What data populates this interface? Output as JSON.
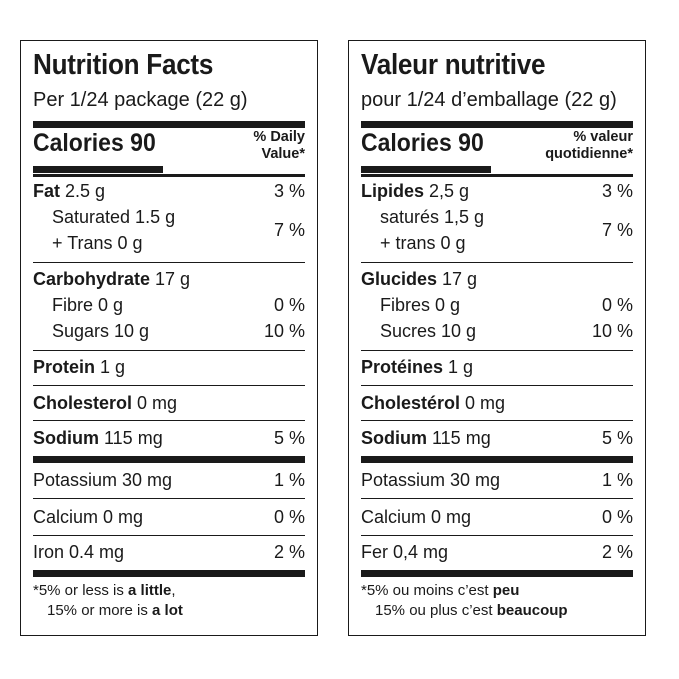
{
  "english": {
    "title": "Nutrition Facts",
    "serving": "Per 1/24 package (22 g)",
    "calories_label": "Calories 90",
    "dv_header_line1": "% Daily",
    "dv_header_line2": "Value*",
    "fat": {
      "label": "Fat",
      "amount": "2.5 g",
      "pct": "3 %"
    },
    "saturated": {
      "text": "Saturated 1.5 g"
    },
    "trans": {
      "text": "+ Trans 0 g"
    },
    "sat_trans_pct": "7 %",
    "carbohydrate": {
      "label": "Carbohydrate",
      "amount": "17 g"
    },
    "fibre": {
      "text": "Fibre 0 g",
      "pct": "0 %"
    },
    "sugars": {
      "text": "Sugars 10 g",
      "pct": "10 %"
    },
    "protein": {
      "label": "Protein",
      "amount": "1 g"
    },
    "cholesterol": {
      "label": "Cholesterol",
      "amount": "0 mg"
    },
    "sodium": {
      "label": "Sodium",
      "amount": "115 mg",
      "pct": "5 %"
    },
    "potassium": {
      "text": "Potassium 30 mg",
      "pct": "1 %"
    },
    "calcium": {
      "text": "Calcium 0 mg",
      "pct": "0 %"
    },
    "iron": {
      "text": "Iron 0.4 mg",
      "pct": "2 %"
    },
    "footnote": {
      "l1_pre": "*5% or less is ",
      "l1_bold": "a little",
      "l1_post": ",",
      "l2_pre": "15% or more is ",
      "l2_bold": "a lot"
    }
  },
  "french": {
    "title": "Valeur nutritive",
    "serving": "pour 1/24 d’emballage (22 g)",
    "calories_label": "Calories 90",
    "dv_header_line1": "% valeur",
    "dv_header_line2": "quotidienne*",
    "fat": {
      "label": "Lipides",
      "amount": "2,5 g",
      "pct": "3 %"
    },
    "saturated": {
      "text": "saturés 1,5 g"
    },
    "trans": {
      "text": "+ trans 0 g"
    },
    "sat_trans_pct": "7 %",
    "carbohydrate": {
      "label": "Glucides",
      "amount": "17 g"
    },
    "fibre": {
      "text": "Fibres 0 g",
      "pct": "0 %"
    },
    "sugars": {
      "text": "Sucres 10 g",
      "pct": "10 %"
    },
    "protein": {
      "label": "Protéines",
      "amount": "1 g"
    },
    "cholesterol": {
      "label": "Cholestérol",
      "amount": "0 mg"
    },
    "sodium": {
      "label": "Sodium",
      "amount": "115 mg",
      "pct": "5 %"
    },
    "potassium": {
      "text": "Potassium 30 mg",
      "pct": "1 %"
    },
    "calcium": {
      "text": "Calcium 0 mg",
      "pct": "0 %"
    },
    "iron": {
      "text": "Fer 0,4 mg",
      "pct": "2 %"
    },
    "footnote": {
      "l1_pre": "*5% ou moins c’est ",
      "l1_bold": "peu",
      "l1_post": "",
      "l2_pre": "15% ou plus c’est ",
      "l2_bold": "beaucoup"
    }
  }
}
